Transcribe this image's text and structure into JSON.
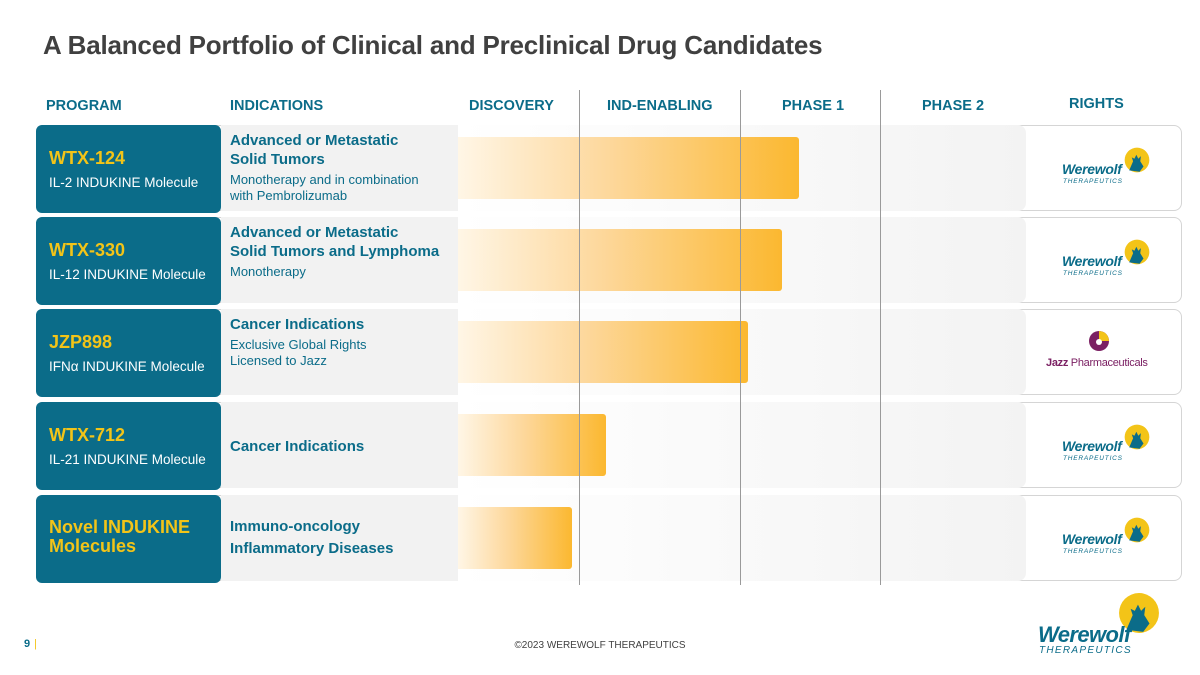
{
  "title": "A Balanced Portfolio of Clinical and Preclinical Drug Candidates",
  "headers": {
    "program": "PROGRAM",
    "indications": "INDICATIONS",
    "discovery": "DISCOVERY",
    "ind_enabling": "IND-ENABLING",
    "phase1": "PHASE 1",
    "phase2": "PHASE 2",
    "rights": "RIGHTS"
  },
  "programs": [
    {
      "name": "WTX-124",
      "desc": "IL-2 INDUKINE Molecule",
      "ind_title": [
        "Advanced or Metastatic",
        "Solid Tumors"
      ],
      "ind_sub": [
        "Monotherapy and in combination",
        "with Pembrolizumab"
      ],
      "progress_fraction": 0.6,
      "rights": "Werewolf"
    },
    {
      "name": "WTX-330",
      "desc": "IL-12 INDUKINE Molecule",
      "ind_title": [
        "Advanced or Metastatic",
        "Solid Tumors and Lymphoma"
      ],
      "ind_sub": [
        "Monotherapy"
      ],
      "progress_fraction": 0.57,
      "rights": "Werewolf"
    },
    {
      "name": "JZP898",
      "desc": "IFNα  INDUKINE Molecule",
      "ind_title": [
        "Cancer Indications"
      ],
      "ind_sub": [
        "Exclusive Global Rights",
        "Licensed to Jazz"
      ],
      "progress_fraction": 0.51,
      "rights": "Jazz Pharmaceuticals"
    },
    {
      "name": "WTX-712",
      "desc": "IL-21 INDUKINE Molecule",
      "ind_title": [
        "Cancer Indications"
      ],
      "ind_sub": [],
      "progress_fraction": 0.26,
      "rights": "Werewolf"
    },
    {
      "name": "Novel INDUKINE Molecules",
      "desc": "",
      "ind_title": [
        "Immuno-oncology",
        "Inflammatory Diseases"
      ],
      "ind_sub": [],
      "progress_fraction": 0.2,
      "rights": "Werewolf"
    }
  ],
  "logos": {
    "werewolf_word": "Werewolf",
    "werewolf_sub": "THERAPEUTICS",
    "jazz_bold": "Jazz",
    "jazz_rest": " Pharmaceuticals"
  },
  "footer": {
    "page_number": "9",
    "separator": "|",
    "copyright": "©2023 WEREWOLF THERAPEUTICS"
  },
  "colors": {
    "teal": "#0b6c89",
    "gold": "#f3c418",
    "bar_end": "#fbb830",
    "jazz_purple": "#7b2063"
  }
}
